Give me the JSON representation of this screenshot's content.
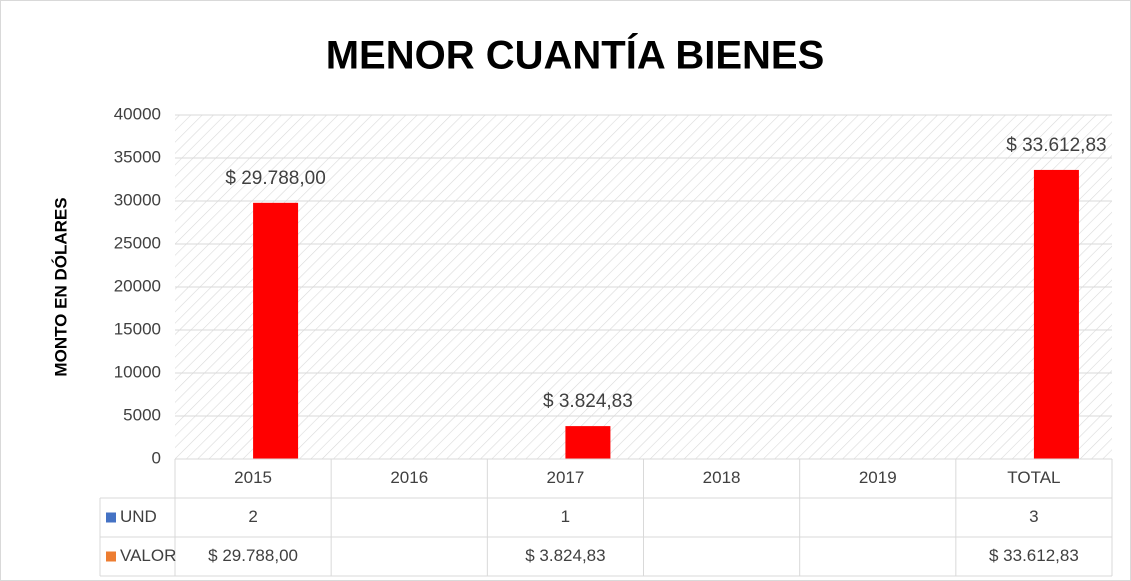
{
  "chart_data": {
    "type": "bar",
    "title": "MENOR CUANTÍA BIENES",
    "y_label": "MONTO EN DÓLARES",
    "categories": [
      "2015",
      "2016",
      "2017",
      "2018",
      "2019",
      "TOTAL"
    ],
    "series": [
      {
        "name": "UND",
        "color": "#4472c4",
        "key_color": "#4472c4",
        "values": [
          2,
          null,
          1,
          null,
          null,
          3
        ]
      },
      {
        "name": "VALOR",
        "color": "#ff0000",
        "key_color": "#ed7d31",
        "values": [
          29788,
          null,
          3824.83,
          null,
          null,
          33612.83
        ],
        "value_labels": [
          "$ 29.788,00",
          null,
          "$ 3.824,83",
          null,
          null,
          "$ 33.612,83"
        ]
      }
    ],
    "ylim": [
      0,
      40000
    ],
    "yticks": [
      0,
      5000,
      10000,
      15000,
      20000,
      25000,
      30000,
      35000,
      40000
    ],
    "grid": true,
    "data_table": true
  }
}
